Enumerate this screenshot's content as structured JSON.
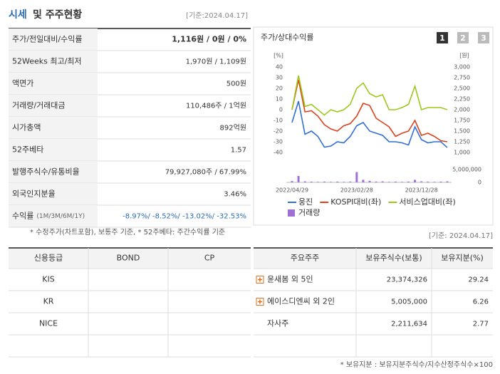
{
  "header": {
    "title": "시세",
    "title_rest": "및 주주현황",
    "date": "[기준:2024.04.17]"
  },
  "price_table": {
    "rows": [
      {
        "label": "주가/전일대비/수익률",
        "value": "1,116원 / 0원 / 0%"
      },
      {
        "label": "52Weeks 최고/최저",
        "value": "1,970원 / 1,109원"
      },
      {
        "label": "액면가",
        "value": "500원"
      },
      {
        "label": "거래량/거래대금",
        "value": "110,486주 / 1억원"
      },
      {
        "label": "시가총액",
        "value": "892억원"
      },
      {
        "label": "52주베타",
        "value": "1.57"
      },
      {
        "label": "발행주식수/유통비율",
        "value": "79,927,080주 / 67.99%"
      },
      {
        "label": "외국인지분율",
        "value": "3.46%"
      },
      {
        "label": "수익률",
        "sublabel": "(1M/3M/6M/1Y)",
        "value": "-8.97%/ -8.52%/ -13.02%/ -32.53%"
      }
    ]
  },
  "price_note": "* 수정주가(차트포함), 보통주 기준, * 52주베타: 주간수익률 기준",
  "chart_data": {
    "type": "line",
    "title": "주가/상대수익률",
    "tabs": [
      "1",
      "2",
      "3"
    ],
    "ylabel": "[%]",
    "y2label": "[원]",
    "categories": [
      "2022/04/29",
      null,
      null,
      null,
      null,
      null,
      null,
      null,
      null,
      null,
      "2023/02/28",
      null,
      null,
      null,
      null,
      null,
      null,
      null,
      null,
      null,
      "2023/12/28",
      null,
      null,
      null,
      null
    ],
    "ylim": [
      -40,
      40
    ],
    "yticks": [
      40,
      30,
      20,
      10,
      0,
      -10,
      -20,
      -30,
      -40
    ],
    "y2lim": [
      1000,
      3000
    ],
    "y2ticks": [
      {
        "value": 3000,
        "label": "3,000"
      },
      {
        "value": 2750,
        "label": "2,750"
      },
      {
        "value": 2500,
        "label": "2,500"
      },
      {
        "value": 2250,
        "label": "2,250"
      },
      {
        "value": 2000,
        "label": "2,000"
      },
      {
        "value": 1750,
        "label": "1,750"
      },
      {
        "value": 1500,
        "label": "1,500"
      },
      {
        "value": 1250,
        "label": "1,250"
      },
      {
        "value": 1000,
        "label": "1,000"
      }
    ],
    "volume_lim": [
      0,
      5000000
    ],
    "volume_ticks": [
      {
        "value": 5000000,
        "label": "5,000,000"
      },
      0
    ],
    "grid": false,
    "series": [
      {
        "name": "웅진",
        "color": "#2f6fd6",
        "axis": "y2",
        "values": [
          1700,
          2200,
          1425,
          1500,
          1375,
          1125,
          1150,
          1250,
          1225,
          1375,
          1625,
          1700,
          1500,
          1450,
          1400,
          1250,
          1250,
          1225,
          1175,
          1600,
          1300,
          1225,
          1250,
          1250,
          1116
        ]
      },
      {
        "name": "KOSPI대비(좌)",
        "color": "#d9441c",
        "values": [
          0,
          28,
          -2,
          -1,
          -6,
          -14,
          -18,
          -20,
          -15,
          -13,
          -6,
          6,
          4,
          -8,
          -12,
          -16,
          -25,
          -22,
          -20,
          -10,
          -24,
          -22,
          -25,
          -29,
          -30
        ]
      },
      {
        "name": "서비스업대비(좌)",
        "color": "#9cc81e",
        "values": [
          0,
          32,
          3,
          5,
          0,
          -5,
          0,
          -2,
          0,
          5,
          20,
          25,
          15,
          12,
          14,
          0,
          0,
          2,
          5,
          22,
          0,
          2,
          2,
          2,
          0
        ]
      },
      {
        "name": "거래량",
        "color": "#a070d8",
        "axis": "volume",
        "type": "bar",
        "values": [
          500000,
          2500000,
          400000,
          300000,
          200000,
          300000,
          200000,
          300000,
          200000,
          300000,
          4000000,
          1000000,
          600000,
          300000,
          400000,
          200000,
          300000,
          200000,
          300000,
          1000000,
          400000,
          300000,
          200000,
          300000,
          400000
        ]
      }
    ]
  },
  "holders_date": "[기준: 2024.04.17]",
  "credit_table": {
    "header": [
      "신용등급",
      "BOND",
      "CP"
    ],
    "rows": [
      [
        "KIS"
      ],
      [
        "KR"
      ],
      [
        "NICE"
      ]
    ]
  },
  "holders_table": {
    "header": [
      "주요주주",
      "보유주식수(보통)",
      "보유지분(%)"
    ],
    "rows": [
      [
        "윤새봄 외 5인",
        "23,374,326",
        "29.24"
      ],
      [
        "에이스디엔씨 외 2인",
        "5,005,000",
        "6.26"
      ],
      [
        "자사주",
        "2,211,634",
        "2.77"
      ]
    ],
    "footnote": "* 보유지분 : 보유지분주식수/지수산정주식수×100"
  }
}
